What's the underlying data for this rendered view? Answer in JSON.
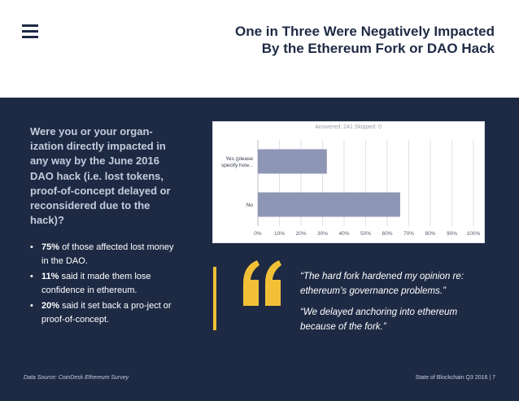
{
  "header": {
    "menu_icon": "hamburger-menu-icon",
    "title_line1": "One in Three Were Negatively Impacted",
    "title_line2": "By the Ethereum Fork or DAO Hack"
  },
  "question": "Were you or your organ-ization directly impacted in any way by the June 2016 DAO hack (i.e. lost tokens, proof-of-concept delayed or reconsidered due to the hack)?",
  "bullets": [
    {
      "stat": "75%",
      "text": " of those affected lost money in the DAO."
    },
    {
      "stat": "11%",
      "text": " said it made them lose confidence in ethereum."
    },
    {
      "stat": "20%",
      "text": " said it set back a pro-ject or proof-of-concept."
    }
  ],
  "chart_data": {
    "type": "bar",
    "orientation": "horizontal",
    "header": "Answered: 241    Skipped: 0",
    "categories": [
      "Yes (please specify how...",
      "No"
    ],
    "category_lines": [
      [
        "Yes (please",
        "specify how..."
      ],
      [
        "No"
      ]
    ],
    "values": [
      32,
      66
    ],
    "xlim": [
      0,
      100
    ],
    "ticks": [
      "0%",
      "10%",
      "20%",
      "30%",
      "40%",
      "50%",
      "60%",
      "70%",
      "80%",
      "90%",
      "100%"
    ],
    "grid": true,
    "bar_color": "#8e96b6",
    "grid_color": "#dfe2e8"
  },
  "quote_icon": "quotation-mark-icon",
  "quotes": [
    "“The hard fork hardened my opinion re: ethereum’s governance problems.”",
    "“We delayed anchoring into ethereum because of the fork.”"
  ],
  "footer": {
    "source": "Data Source: CoinDesk Ethereum Survey",
    "page": "State of Blockchain Q3 2016  |  7"
  },
  "colors": {
    "navy": "#1e2a44",
    "accent_yellow": "#f2c037",
    "question_text": "#c5cbdc"
  }
}
